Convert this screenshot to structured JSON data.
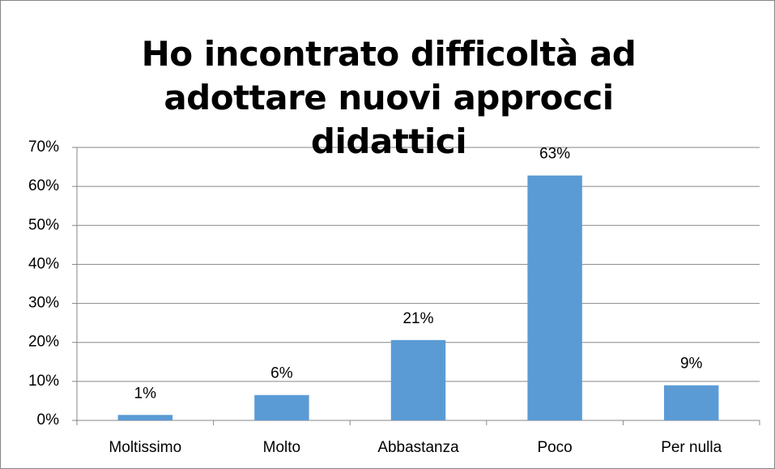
{
  "chart_data": {
    "type": "bar",
    "title": "Ho incontrato difficoltà ad adottare nuovi approcci didattici",
    "categories": [
      "Moltissimo",
      "Molto",
      "Abbastanza",
      "Poco",
      "Per nulla"
    ],
    "values": [
      1.4,
      6.5,
      20.6,
      62.8,
      9.0
    ],
    "value_labels": [
      "1%",
      "6%",
      "21%",
      "63%",
      "9%"
    ],
    "color": "#5b9bd5",
    "ylim": [
      0,
      70
    ],
    "yticks": [
      {
        "value": 0,
        "label": "0%"
      },
      {
        "value": 10,
        "label": "10%"
      },
      {
        "value": 20,
        "label": "20%"
      },
      {
        "value": 30,
        "label": "30%"
      },
      {
        "value": 40,
        "label": "40%"
      },
      {
        "value": 50,
        "label": "50%"
      },
      {
        "value": 60,
        "label": "60%"
      },
      {
        "value": 70,
        "label": "70%"
      }
    ],
    "grid": true
  }
}
